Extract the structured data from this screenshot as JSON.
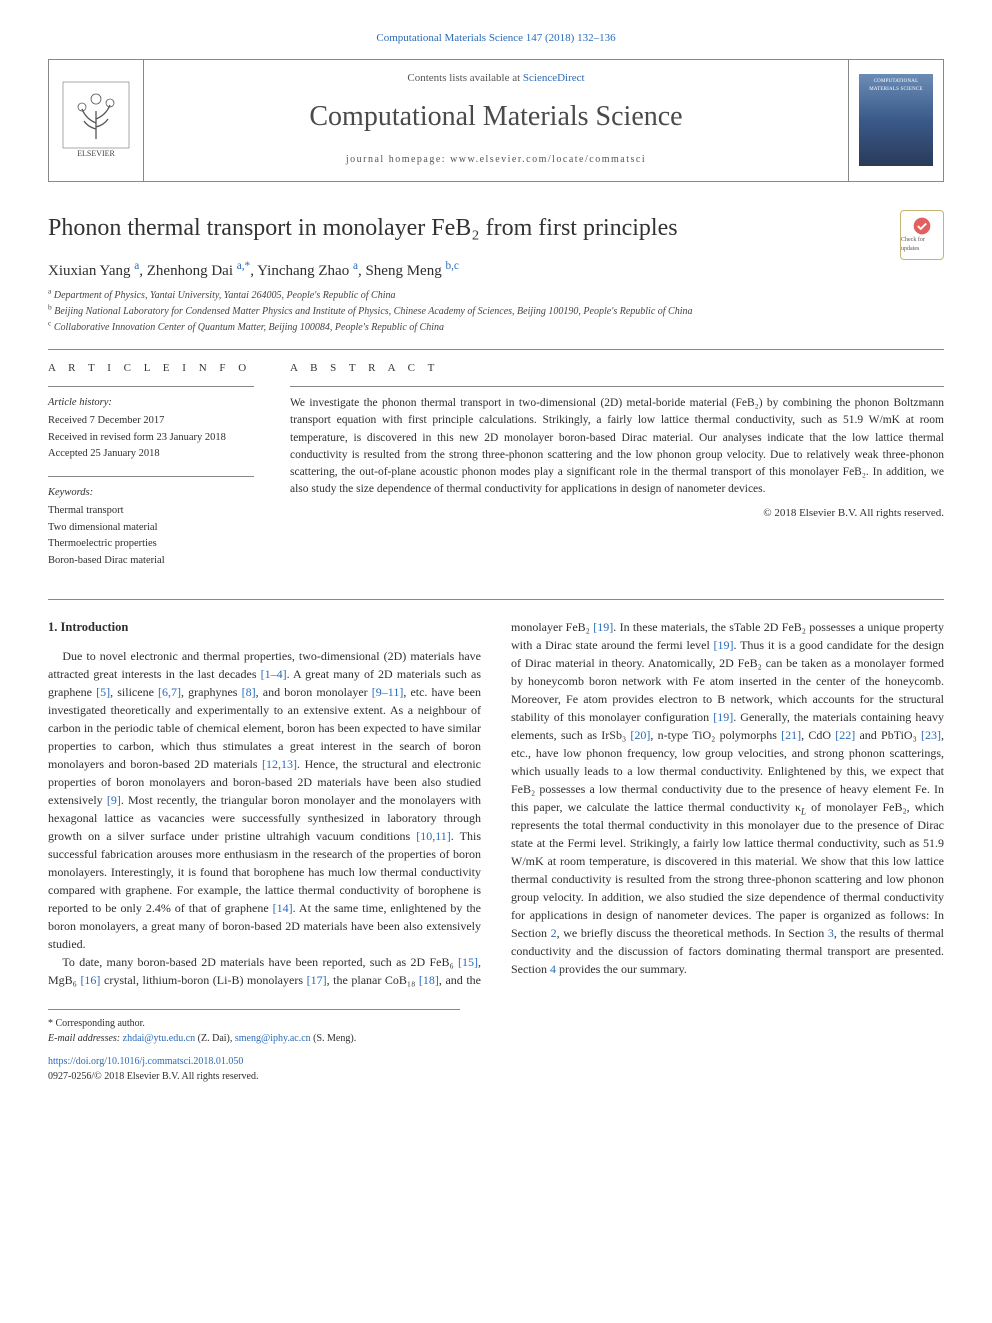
{
  "citation_header": "Computational Materials Science 147 (2018) 132–136",
  "header": {
    "contents_prefix": "Contents lists available at ",
    "contents_link": "ScienceDirect",
    "journal_name": "Computational Materials Science",
    "homepage_line": "journal homepage: www.elsevier.com/locate/commatsci"
  },
  "title": "Phonon thermal transport in monolayer FeB₂ from first principles",
  "check_badge": "Check for updates",
  "authors_html": "Xiuxian Yang",
  "author_list": [
    {
      "name": "Xiuxian Yang",
      "aff": "a"
    },
    {
      "name": "Zhenhong Dai",
      "aff": "a,*"
    },
    {
      "name": "Yinchang Zhao",
      "aff": "a"
    },
    {
      "name": "Sheng Meng",
      "aff": "b,c"
    }
  ],
  "affiliations": [
    {
      "sup": "a",
      "text": "Department of Physics, Yantai University, Yantai 264005, People's Republic of China"
    },
    {
      "sup": "b",
      "text": "Beijing National Laboratory for Condensed Matter Physics and Institute of Physics, Chinese Academy of Sciences, Beijing 100190, People's Republic of China"
    },
    {
      "sup": "c",
      "text": "Collaborative Innovation Center of Quantum Matter, Beijing 100084, People's Republic of China"
    }
  ],
  "article_info_label": "A R T I C L E   I N F O",
  "abstract_label": "A B S T R A C T",
  "history": {
    "label": "Article history:",
    "lines": [
      "Received 7 December 2017",
      "Received in revised form 23 January 2018",
      "Accepted 25 January 2018"
    ]
  },
  "keywords": {
    "label": "Keywords:",
    "items": [
      "Thermal transport",
      "Two dimensional material",
      "Thermoelectric properties",
      "Boron-based Dirac material"
    ]
  },
  "abstract_text": "We investigate the phonon thermal transport in two-dimensional (2D) metal-boride material (FeB₂) by combining the phonon Boltzmann transport equation with first principle calculations. Strikingly, a fairly low lattice thermal conductivity, such as 51.9 W/mK at room temperature, is discovered in this new 2D monolayer boron-based Dirac material. Our analyses indicate that the low lattice thermal conductivity is resulted from the strong three-phonon scattering and the low phonon group velocity. Due to relatively weak three-phonon scattering, the out-of-plane acoustic phonon modes play a significant role in the thermal transport of this monolayer FeB₂. In addition, we also study the size dependence of thermal conductivity for applications in design of nanometer devices.",
  "copyright": "© 2018 Elsevier B.V. All rights reserved.",
  "intro_head": "1. Introduction",
  "body_refs": {
    "r1_4": "[1–4]",
    "r5": "[5]",
    "r6_7": "[6,7]",
    "r8": "[8]",
    "r9_11": "[9–11]",
    "r12_13": "[12,13]",
    "r9": "[9]",
    "r10_11": "[10,11]",
    "r14": "[14]",
    "r15": "[15]",
    "r16": "[16]",
    "r17": "[17]",
    "r18": "[18]",
    "r19a": "[19]",
    "r19b": "[19]",
    "r19c": "[19]",
    "r20": "[20]",
    "r21": "[21]",
    "r22": "[22]",
    "r23": "[23]",
    "sec2": "2",
    "sec3": "3",
    "sec4": "4"
  },
  "para1": {
    "t1": "Due to novel electronic and thermal properties, two-dimensional (2D) materials have attracted great interests in the last decades ",
    "t2": ". A great many of 2D materials such as graphene ",
    "t3": ", silicene ",
    "t4": ", graphynes ",
    "t5": ", and boron monolayer ",
    "t6": ", etc. have been investigated theoretically and experimentally to an extensive extent. As a neighbour of carbon in the periodic table of chemical element, boron has been expected to have similar properties to carbon, which thus stimulates a great interest in the search of boron monolayers and boron-based 2D materials ",
    "t7": ". Hence, the structural and electronic properties of boron monolayers and boron-based 2D materials have been also studied extensively ",
    "t8": ". Most recently, the triangular boron monolayer and the monolayers with hexagonal lattice as vacancies were successfully synthesized in laboratory through growth on a silver surface under pristine ultrahigh vacuum conditions ",
    "t9": ". This successful fabrication arouses more enthusiasm in the research of the properties of boron monolayers. Interestingly, it is found that borophene has much low thermal conductivity compared with graphene. For example, the lattice thermal conductivity of borophene is reported to be only 2.4% of that of graphene ",
    "t10": ". At the same time, enlightened by the boron monolayers, a great many of boron-based 2D materials have been also extensively studied."
  },
  "para2": {
    "t1": "To date, many boron-based 2D materials have been reported, such as 2D FeB₆ ",
    "t2": ", MgB₆ ",
    "t3": " crystal, lithium-boron (Li-B) monolayers ",
    "t4": ", the planar CoB₁₈ ",
    "t5": ", and the monolayer FeB₂ ",
    "t6": ". In these materials, the sTable 2D FeB₂ possesses a unique property with a Dirac state around the fermi level ",
    "t7": ". Thus it is a good candidate for the design of Dirac material in theory. Anatomically, 2D FeB₂ can be taken as a monolayer formed by honeycomb boron network with Fe atom inserted in the center of the honeycomb. Moreover, Fe atom provides electron to B network, which accounts for the structural stability of this monolayer configuration ",
    "t8": ". Generally, the materials containing heavy elements, such as IrSb₃ ",
    "t9": ", n-type TiO₂ polymorphs ",
    "t10": ", CdO ",
    "t11": " and PbTiO₃ ",
    "t12": ", etc., have low phonon frequency, low group velocities, and strong phonon scatterings, which usually leads to a low thermal conductivity. Enlightened by this, we expect that FeB₂ possesses a low thermal conductivity due to the presence of heavy element Fe. In this paper, we calculate the lattice thermal conductivity κ",
    "t12b": " of monolayer FeB₂, which represents the total thermal conductivity in this monolayer due to the presence of Dirac state at the Fermi level. Strikingly, a fairly low lattice thermal conductivity, such as 51.9 W/mK at room temperature, is discovered in this material. We show that this low lattice thermal conductivity is resulted from the strong three-phonon scattering and low phonon group velocity. In addition, we also studied the size dependence of thermal conductivity for applications in design of nanometer devices. The paper is organized as follows: In Section ",
    "t13": ", we briefly discuss the theoretical methods. In Section ",
    "t14": ", the results of thermal conductivity and the discussion of factors dominating thermal transport are presented. Section ",
    "t15": " provides the our summary."
  },
  "footnote": {
    "star": "* Corresponding author.",
    "email_label": "E-mail addresses: ",
    "email1": "zhdai@ytu.edu.cn",
    "email1_who": " (Z. Dai), ",
    "email2": "smeng@iphy.ac.cn",
    "email2_who": " (S. Meng)."
  },
  "doi": {
    "link": "https://doi.org/10.1016/j.commatsci.2018.01.050",
    "issn_line": "0927-0256/© 2018 Elsevier B.V. All rights reserved."
  },
  "colors": {
    "link": "#2a6bb8",
    "text": "#2e2e2e",
    "border": "#888888"
  }
}
